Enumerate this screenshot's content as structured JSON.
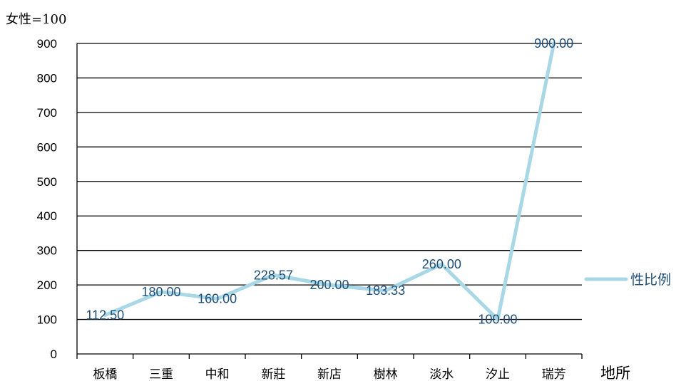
{
  "chart_data": {
    "type": "line",
    "ylabel": "女性=100",
    "xlabel": "地所",
    "categories": [
      "板橋",
      "三重",
      "中和",
      "新莊",
      "新店",
      "樹林",
      "淡水",
      "汐止",
      "瑞芳"
    ],
    "series": [
      {
        "name": "性比例",
        "values": [
          112.5,
          180.0,
          160.0,
          228.57,
          200.0,
          183.33,
          260.0,
          100.0,
          900.0
        ],
        "labels": [
          "112.50",
          "180.00",
          "160.00",
          "228.57",
          "200.00",
          "183.33",
          "260.00",
          "100.00",
          "900.00"
        ],
        "color": "#a8d8e6"
      }
    ],
    "yticks": [
      "0",
      "100",
      "200",
      "300",
      "400",
      "500",
      "600",
      "700",
      "800",
      "900"
    ],
    "ylim": [
      0,
      900
    ],
    "grid": true,
    "legend_position": "right"
  },
  "colors": {
    "line": "#a8d8e6",
    "data_label": "#1f4e79",
    "axis": "#000000"
  }
}
